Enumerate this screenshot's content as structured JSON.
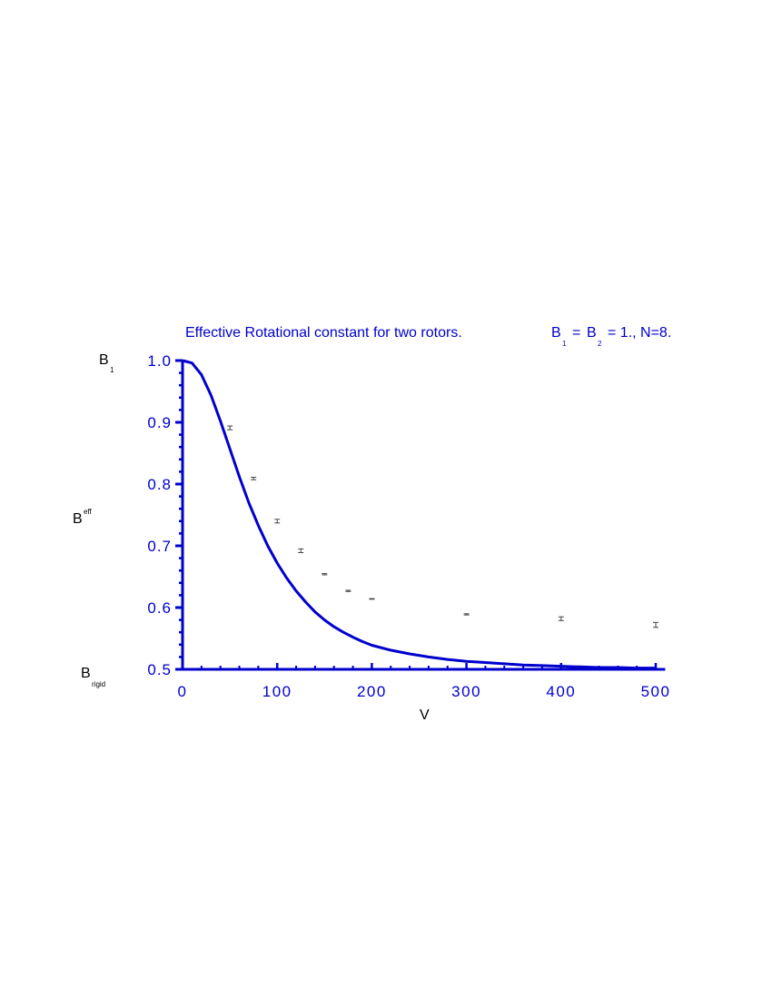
{
  "chart_data": {
    "type": "line",
    "title": {
      "text": "Effective  Rotational  constant  for  two  rotors.",
      "b1_label": "B",
      "b1_sub": "1",
      "eq1": "=",
      "b2_label": "B",
      "b2_sub": "2",
      "tail": "= 1., N=8."
    },
    "xlabel": "V",
    "ylabel": "B",
    "ylabel_sub": "eff",
    "y_top_label": "B",
    "y_top_sub": "1",
    "y_bottom_label": "B",
    "y_bottom_sub": "rigid",
    "xlim": [
      0,
      510
    ],
    "ylim": [
      0.5,
      1.0
    ],
    "x_ticks": [
      {
        "value": 0,
        "label": "0"
      },
      {
        "value": 100,
        "label": "100"
      },
      {
        "value": 200,
        "label": "200"
      },
      {
        "value": 300,
        "label": "300"
      },
      {
        "value": 400,
        "label": "400"
      },
      {
        "value": 500,
        "label": "500"
      }
    ],
    "y_ticks": [
      {
        "value": 0.5,
        "label": "0.5"
      },
      {
        "value": 0.6,
        "label": "0.6"
      },
      {
        "value": 0.7,
        "label": "0.7"
      },
      {
        "value": 0.8,
        "label": "0.8"
      },
      {
        "value": 0.9,
        "label": "0.9"
      },
      {
        "value": 1.0,
        "label": "1.0"
      }
    ],
    "grid": false,
    "curve": {
      "color": "#0000cc",
      "x": [
        0,
        10,
        20,
        30,
        40,
        50,
        60,
        70,
        80,
        90,
        100,
        110,
        120,
        130,
        140,
        150,
        160,
        170,
        180,
        190,
        200,
        220,
        240,
        260,
        280,
        300,
        320,
        340,
        360,
        380,
        400,
        420,
        440,
        460,
        480,
        500
      ],
      "y": [
        1.0,
        0.996,
        0.977,
        0.944,
        0.902,
        0.857,
        0.812,
        0.77,
        0.733,
        0.7,
        0.672,
        0.648,
        0.627,
        0.609,
        0.593,
        0.58,
        0.569,
        0.56,
        0.552,
        0.545,
        0.539,
        0.531,
        0.525,
        0.52,
        0.516,
        0.513,
        0.511,
        0.509,
        0.507,
        0.506,
        0.505,
        0.504,
        0.503,
        0.503,
        0.502,
        0.502
      ]
    },
    "points": {
      "color": "#444444",
      "data": [
        {
          "x": 50,
          "y": 0.891,
          "err": 0.003
        },
        {
          "x": 75,
          "y": 0.809,
          "err": 0.002
        },
        {
          "x": 100,
          "y": 0.74,
          "err": 0.003
        },
        {
          "x": 125,
          "y": 0.692,
          "err": 0.003
        },
        {
          "x": 150,
          "y": 0.654,
          "err": 0.001
        },
        {
          "x": 175,
          "y": 0.627,
          "err": 0.001
        },
        {
          "x": 200,
          "y": 0.614,
          "err": 0.0005
        },
        {
          "x": 300,
          "y": 0.589,
          "err": 0.001
        },
        {
          "x": 400,
          "y": 0.582,
          "err": 0.003
        },
        {
          "x": 500,
          "y": 0.572,
          "err": 0.004
        }
      ]
    }
  }
}
